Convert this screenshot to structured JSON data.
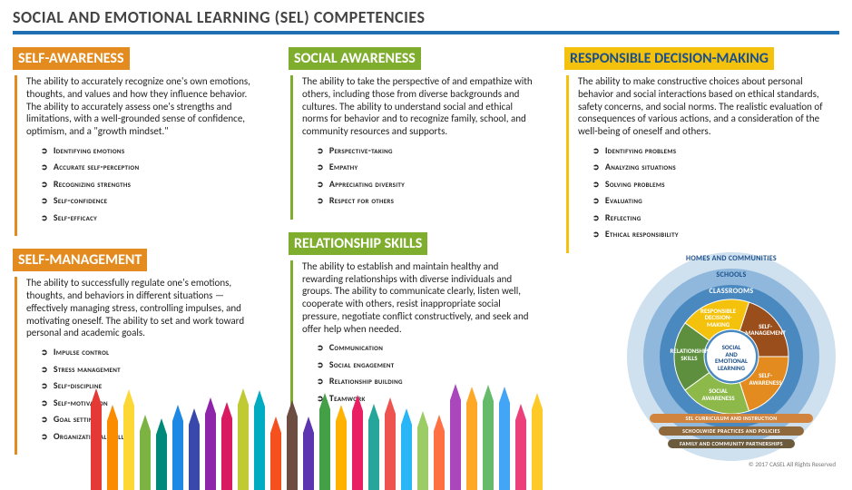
{
  "title": "SOCIAL AND EMOTIONAL LEARNING (SEL) COMPETENCIES",
  "rule_color": "#1f6fb5",
  "colors": {
    "orange": "#e38b1f",
    "green": "#7fae2f",
    "yellow": "#f4c20d"
  },
  "competencies": {
    "self_awareness": {
      "title": "SELF-AWARENESS",
      "bg": "#e38b1f",
      "desc": "The ability to accurately recognize one's own emotions, thoughts, and values and how they influence behavior. The ability to accurately assess one's strengths and limitations, with a well-grounded sense of confidence, optimism, and a \"growth mindset.\"",
      "bullets": [
        "Identifying emotions",
        "Accurate self-perception",
        "Recognizing strengths",
        "Self-confidence",
        "Self-efficacy"
      ]
    },
    "self_management": {
      "title": "SELF-MANAGEMENT",
      "bg": "#e38b1f",
      "desc": "The ability to successfully regulate one's emotions, thoughts, and behaviors in different situations — effectively managing stress, controlling impulses, and motivating oneself. The ability to set and work toward personal and academic goals.",
      "bullets": [
        "Impulse control",
        "Stress management",
        "Self-discipline",
        "Self-motivation",
        "Goal setting",
        "Organizational skills"
      ]
    },
    "social_awareness": {
      "title": "SOCIAL AWARENESS",
      "bg": "#7fae2f",
      "desc": "The ability to take the perspective of and empathize with others, including those from diverse backgrounds and cultures. The ability to understand social and ethical norms for behavior and to recognize family, school, and community resources and supports.",
      "bullets": [
        "Perspective-taking",
        "Empathy",
        "Appreciating diversity",
        "Respect for others"
      ]
    },
    "relationship_skills": {
      "title": "RELATIONSHIP SKILLS",
      "bg": "#7fae2f",
      "desc": "The ability to establish and maintain healthy and rewarding relationships with diverse individuals and groups. The ability to communicate clearly, listen well, cooperate with others, resist inappropriate social pressure, negotiate conflict constructively, and seek and offer help when needed.",
      "bullets": [
        "Communication",
        "Social engagement",
        "Relationship building",
        "Teamwork"
      ]
    },
    "responsible_decision": {
      "title": "RESPONSIBLE DECISION-MAKING",
      "bg": "#f4c20d",
      "fg": "#1b4f8a",
      "desc": "The ability to make constructive choices about personal behavior and social interactions based on ethical standards, safety concerns, and social norms. The realistic evaluation of consequences of various actions, and a consideration of the well-being of oneself and others.",
      "bullets": [
        "Identifying problems",
        "Analyzing situations",
        "Solving problems",
        "Evaluating",
        "Reflecting",
        "Ethical responsibility"
      ]
    }
  },
  "wheel": {
    "rings": [
      {
        "label": "HOMES AND COMMUNITIES",
        "color": "#cfe0ef",
        "r": 115
      },
      {
        "label": "SCHOOLS",
        "color": "#8fb8dc",
        "r": 97
      },
      {
        "label": "CLASSROOMS",
        "color": "#4a89c0",
        "r": 79
      }
    ],
    "bottom_bands": [
      {
        "label": "SEL CURRICULUM AND INSTRUCTION",
        "color": "#d0843e"
      },
      {
        "label": "SCHOOLWIDE PRACTICES AND POLICIES",
        "color": "#8f693b"
      },
      {
        "label": "FAMILY AND COMMUNITY PARTNERSHIPS",
        "color": "#6b5a3c"
      }
    ],
    "wedges": [
      {
        "label": "SELF-\nAWARENESS",
        "color": "#e38b1f",
        "angle": 126
      },
      {
        "label": "SELF-\nMANAGEMENT",
        "color": "#9a4e1b",
        "angle": 54
      },
      {
        "label": "RESPONSIBLE\nDECISION-\nMAKING",
        "color": "#f4c20d",
        "angle": 342
      },
      {
        "label": "RELATIONSHIP\nSKILLS",
        "color": "#5d8f3f",
        "angle": 270
      },
      {
        "label": "SOCIAL\nAWARENESS",
        "color": "#8db84a",
        "angle": 198
      }
    ],
    "center": {
      "label": "SOCIAL\nAND\nEMOTIONAL\nLEARNING",
      "bg": "#ffffff",
      "border": "#4a89c0"
    }
  },
  "pencils": [
    "#e53935",
    "#fb8c00",
    "#fdd835",
    "#7cb342",
    "#00897b",
    "#1e88e5",
    "#3949ab",
    "#8e24aa",
    "#d81b60",
    "#c0ca33",
    "#00acc1",
    "#f4511e",
    "#6d4c41",
    "#5e35b1",
    "#43a047",
    "#ffb300",
    "#e91e63",
    "#26a69a",
    "#ef5350",
    "#29b6f6",
    "#9ccc65",
    "#ff7043",
    "#ab47bc",
    "#ffa726",
    "#66bb6a",
    "#42a5f5",
    "#ec407a",
    "#ffca28"
  ],
  "copyright": "© 2017 CASEL All Rights Reserved"
}
